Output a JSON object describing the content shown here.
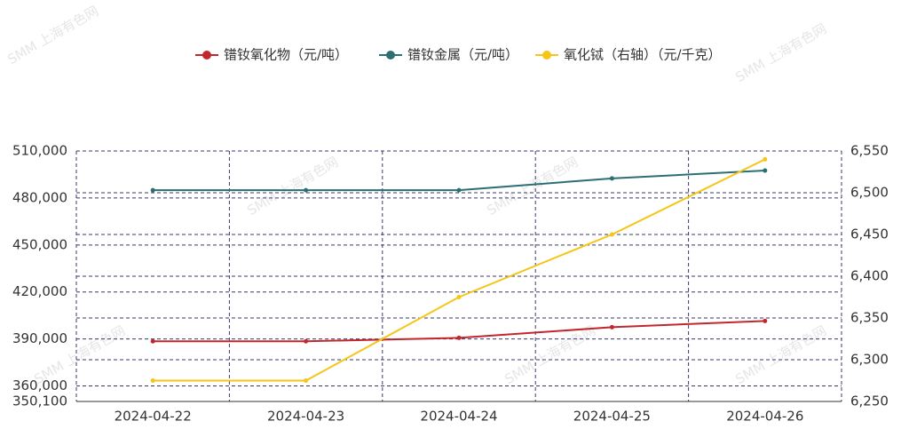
{
  "chart_data": {
    "type": "line",
    "watermark": "SMM 上海有色网",
    "categories": [
      "2024-04-22",
      "2024-04-23",
      "2024-04-24",
      "2024-04-25",
      "2024-04-26"
    ],
    "series": [
      {
        "name": "镨钕氧化物（元/吨）",
        "color": "#c0282d",
        "values": [
          388500,
          388500,
          390700,
          397500,
          401500
        ]
      },
      {
        "name": "镨钕金属（元/吨）",
        "color": "#2b6f73",
        "values": [
          485000,
          485000,
          485000,
          492500,
          497500
        ]
      },
      {
        "name": "氧化铽（右轴）（元/千克）",
        "color": "#f5c518",
        "axis": "y2",
        "values": [
          6275,
          6275,
          6375,
          6450,
          6540
        ]
      }
    ],
    "ylim": [
      350100,
      510000
    ],
    "yticks": [
      {
        "value": 350100,
        "label": "350,100"
      },
      {
        "value": 360000,
        "label": "360,000"
      },
      {
        "value": 390000,
        "label": "390,000"
      },
      {
        "value": 420000,
        "label": "420,000"
      },
      {
        "value": 450000,
        "label": "450,000"
      },
      {
        "value": 480000,
        "label": "480,000"
      },
      {
        "value": 510000,
        "label": "510,000"
      }
    ],
    "y2lim": [
      6250,
      6550
    ],
    "y2ticks": [
      {
        "value": 6250,
        "label": "6,250"
      },
      {
        "value": 6300,
        "label": "6,300"
      },
      {
        "value": 6350,
        "label": "6,350"
      },
      {
        "value": 6400,
        "label": "6,400"
      },
      {
        "value": 6450,
        "label": "6,450"
      },
      {
        "value": 6500,
        "label": "6,500"
      },
      {
        "value": 6550,
        "label": "6,550"
      }
    ],
    "grid": true,
    "legend": "top"
  }
}
